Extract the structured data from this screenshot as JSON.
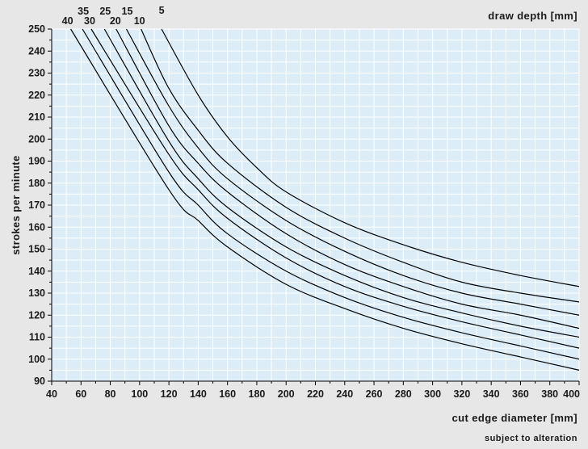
{
  "chart_data": {
    "type": "line",
    "xlabel": "cut edge diameter [mm]",
    "ylabel": "strokes per minute",
    "legend_title": "draw depth [mm]",
    "note": "subject to alteration",
    "xlim": [
      40,
      400
    ],
    "ylim": [
      90,
      250
    ],
    "x_ticks": [
      "40",
      "60",
      "80",
      "100",
      "120",
      "140",
      "160",
      "180",
      "200",
      "220",
      "240",
      "260",
      "280",
      "300",
      "320",
      "340",
      "360",
      "380",
      "400"
    ],
    "y_ticks": [
      "90",
      "100",
      "110",
      "120",
      "130",
      "140",
      "150",
      "160",
      "170",
      "180",
      "190",
      "200",
      "210",
      "220",
      "230",
      "240",
      "250"
    ],
    "grid": true,
    "series": [
      {
        "name": "5",
        "x": [
          115,
          140,
          160,
          180,
          200,
          240,
          280,
          320,
          360,
          400
        ],
        "y": [
          250,
          220,
          201,
          187,
          176,
          162,
          152,
          144,
          138,
          133
        ]
      },
      {
        "name": "10",
        "x": [
          101,
          120,
          140,
          160,
          200,
          240,
          280,
          320,
          360,
          400
        ],
        "y": [
          250,
          223,
          204,
          189,
          169,
          155,
          144,
          135,
          130,
          126
        ]
      },
      {
        "name": "15",
        "x": [
          91,
          120,
          140,
          160,
          200,
          240,
          280,
          320,
          360,
          400
        ],
        "y": [
          250,
          215,
          196,
          182,
          163,
          149,
          138,
          130,
          125,
          120
        ]
      },
      {
        "name": "20",
        "x": [
          84,
          120,
          140,
          160,
          200,
          240,
          280,
          320,
          360,
          400
        ],
        "y": [
          250,
          206,
          189,
          176,
          157,
          143,
          133,
          125,
          120,
          114
        ]
      },
      {
        "name": "25",
        "x": [
          76,
          120,
          140,
          160,
          200,
          240,
          280,
          320,
          360,
          400
        ],
        "y": [
          250,
          199,
          182,
          169,
          151,
          138,
          128,
          121,
          115,
          110
        ]
      },
      {
        "name": "30",
        "x": [
          67,
          120,
          140,
          160,
          200,
          240,
          280,
          320,
          360,
          400
        ],
        "y": [
          250,
          193,
          177,
          164,
          146,
          133,
          124,
          117,
          111,
          105
        ]
      },
      {
        "name": "35",
        "x": [
          61,
          120,
          140,
          160,
          200,
          240,
          280,
          320,
          360,
          400
        ],
        "y": [
          250,
          185,
          170,
          157,
          140,
          128,
          119,
          112,
          106,
          100
        ]
      },
      {
        "name": "40",
        "x": [
          53,
          120,
          140,
          160,
          200,
          240,
          280,
          320,
          360,
          400
        ],
        "y": [
          250,
          177,
          163,
          151,
          134,
          123,
          114,
          107,
          101,
          95
        ]
      }
    ],
    "colors": {
      "plot_bg": "#dcedf7",
      "grid": "#ffffff",
      "line": "#000000",
      "page_bg": "#e7e7e7"
    }
  }
}
